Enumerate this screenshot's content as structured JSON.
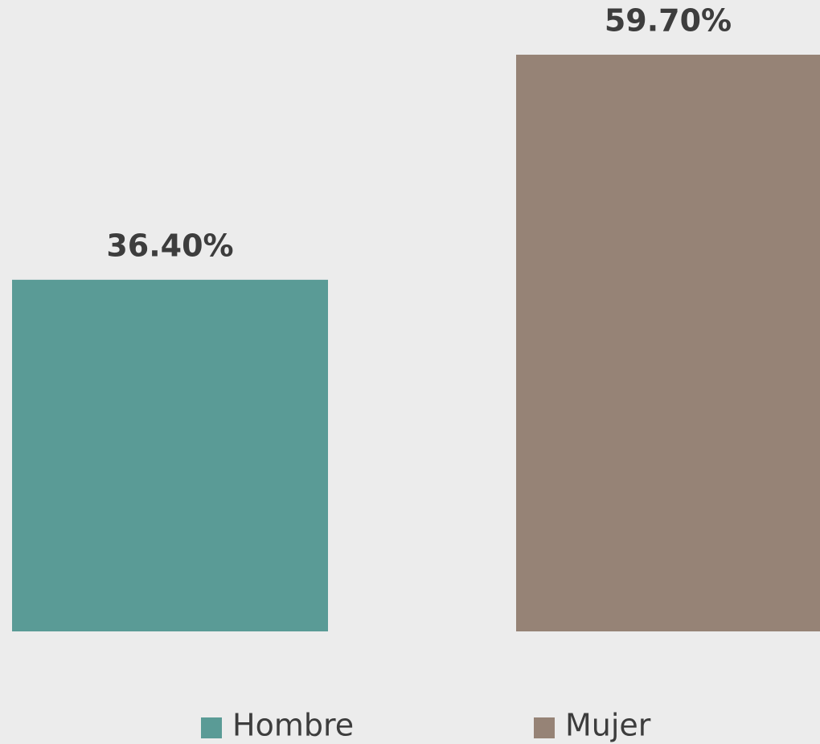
{
  "chart_data": {
    "type": "bar",
    "series": [
      {
        "name": "Hombre",
        "color": "#5a9b96",
        "values": [
          36.4
        ],
        "value_labels": [
          "36.40%"
        ]
      },
      {
        "name": "Mujer",
        "color": "#968376",
        "values": [
          59.7
        ],
        "value_labels": [
          "59.70%"
        ]
      }
    ]
  }
}
